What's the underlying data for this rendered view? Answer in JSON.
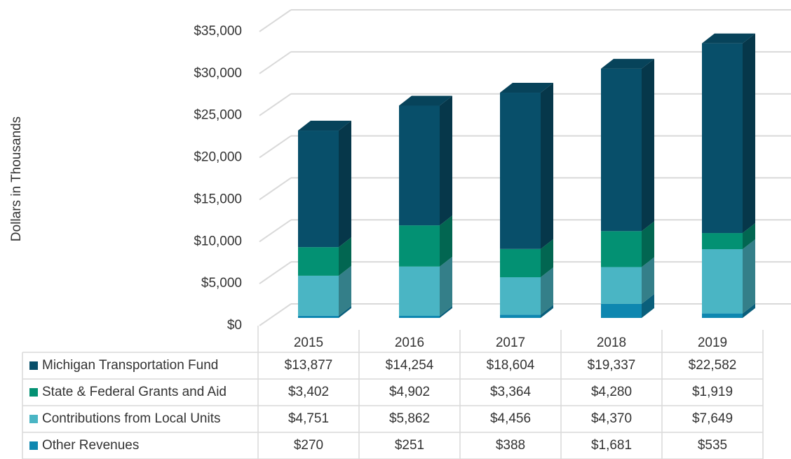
{
  "chart_data": {
    "type": "bar3d_stacked",
    "y_label": "Dollars in Thousands",
    "categories": [
      "2015",
      "2016",
      "2017",
      "2018",
      "2019"
    ],
    "series": [
      {
        "name": "Michigan Transportation Fund",
        "color": "#084f6a",
        "values": [
          13877,
          14254,
          18604,
          19337,
          22582
        ],
        "value_labels": [
          "$13,877",
          "$14,254",
          "$18,604",
          "$19,337",
          "$22,582"
        ]
      },
      {
        "name": "State & Federal Grants and Aid",
        "color": "#039173",
        "values": [
          3402,
          4902,
          3364,
          4280,
          1919
        ],
        "value_labels": [
          "$3,402",
          "$4,902",
          "$3,364",
          "$4,280",
          "$1,919"
        ]
      },
      {
        "name": "Contributions from Local Units",
        "color": "#4ab5c4",
        "values": [
          4751,
          5862,
          4456,
          4370,
          7649
        ],
        "value_labels": [
          "$4,751",
          "$5,862",
          "$4,456",
          "$4,370",
          "$7,649"
        ]
      },
      {
        "name": "Other Revenues",
        "color": "#0e87b0",
        "values": [
          270,
          251,
          388,
          1681,
          535
        ],
        "value_labels": [
          "$270",
          "$251",
          "$388",
          "$1,681",
          "$535"
        ]
      }
    ],
    "ylim": [
      0,
      35000
    ],
    "yticks": [
      {
        "value": 0,
        "label": "$0"
      },
      {
        "value": 5000,
        "label": "$5,000"
      },
      {
        "value": 10000,
        "label": "$10,000"
      },
      {
        "value": 15000,
        "label": "$15,000"
      },
      {
        "value": 20000,
        "label": "$20,000"
      },
      {
        "value": 25000,
        "label": "$25,000"
      },
      {
        "value": 30000,
        "label": "$30,000"
      },
      {
        "value": 35000,
        "label": "$35,000"
      }
    ],
    "grid": true
  }
}
